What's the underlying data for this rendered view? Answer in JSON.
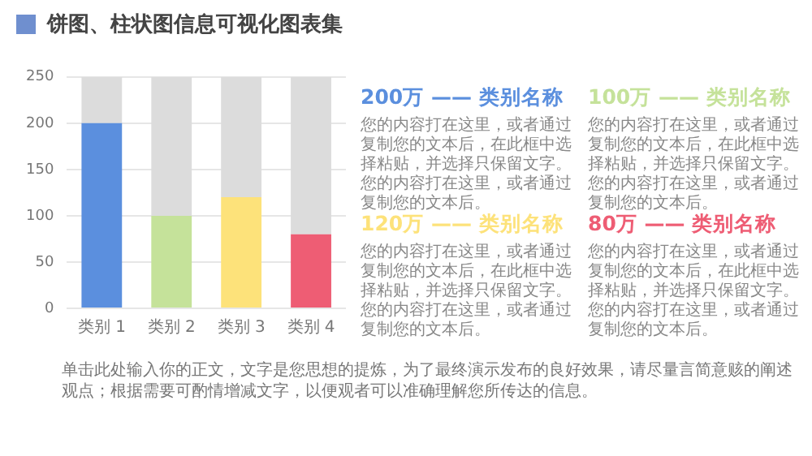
{
  "chart_data": {
    "type": "bar",
    "title": "饼图、柱状图信息可视化图表集",
    "categories": [
      "类别 1",
      "类别 2",
      "类别 3",
      "类别 4"
    ],
    "stacked": true,
    "series": [
      {
        "colors": [
          "#5b8fde",
          "#c5e29a",
          "#fde27a",
          "#ee5d74"
        ],
        "values": [
          200,
          100,
          120,
          80
        ]
      },
      {
        "color": "#dcdcdc",
        "values": [
          50,
          150,
          130,
          170
        ]
      }
    ],
    "ylim": [
      0,
      250
    ],
    "yticks": [
      0,
      50,
      100,
      150,
      200,
      250
    ],
    "grid": "y",
    "legend": false,
    "annotations": [
      "200万 —— 类别名称",
      "您的内容打在这里，或者通过复制您的文本后，在此框中选择粘贴，并选择只保留文字。您的内容打在这里，或者通过复制您的文本后。",
      "100万 —— 类别名称",
      "您的内容打在这里，或者通过复制您的文本后，在此框中选择粘贴，并选择只保留文字。您的内容打在这里，或者通过复制您的文本后。",
      "120万 —— 类别名称",
      "您的内容打在这里，或者通过复制您的文本后，在此框中选择粘贴，并选择只保留文字。您的内容打在这里，或者通过复制您的文本后。",
      "80万 —— 类别名称",
      "您的内容打在这里，或者通过复制您的文本后，在此框中选择粘贴，并选择只保留文字。您的内容打在这里，或者通过复制您的文本后。",
      "单击此处输入你的正文，文字是您思想的提炼，为了最终演示发布的良好效果，请尽量言简意赅的阐述观点；根据需要可酌情增减文字，以便观者可以准确理解您所传达的信息。"
    ]
  }
}
